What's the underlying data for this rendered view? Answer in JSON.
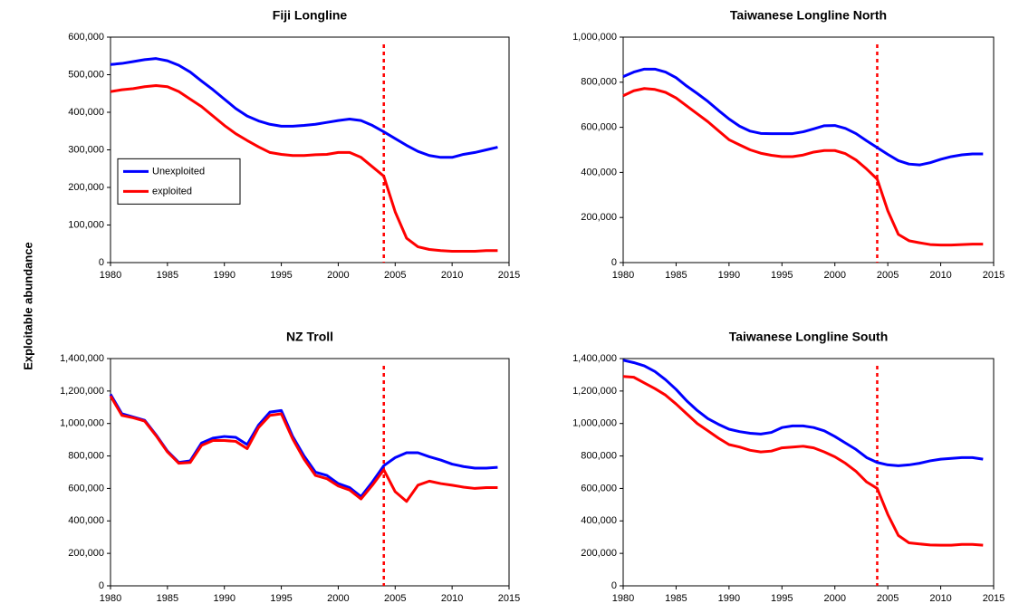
{
  "ylabel": "Exploitable abundance",
  "chart_data": [
    {
      "type": "line",
      "title": "Fiji Longline",
      "x": [
        1980,
        1981,
        1982,
        1983,
        1984,
        1985,
        1986,
        1987,
        1988,
        1989,
        1990,
        1991,
        1992,
        1993,
        1994,
        1995,
        1996,
        1997,
        1998,
        1999,
        2000,
        2001,
        2002,
        2003,
        2004,
        2005,
        2006,
        2007,
        2008,
        2009,
        2010,
        2011,
        2012,
        2013,
        2014
      ],
      "series": [
        {
          "name": "Unexploited",
          "color": "#0000ff",
          "values": [
            527000,
            530000,
            535000,
            540000,
            543000,
            537000,
            525000,
            507000,
            483000,
            460000,
            435000,
            410000,
            390000,
            377000,
            368000,
            363000,
            363000,
            365000,
            368000,
            373000,
            378000,
            382000,
            378000,
            365000,
            348000,
            330000,
            312000,
            296000,
            285000,
            280000,
            280000,
            288000,
            293000,
            300000,
            307000
          ]
        },
        {
          "name": "exploited",
          "color": "#ff0000",
          "values": [
            455000,
            460000,
            463000,
            468000,
            471000,
            468000,
            455000,
            435000,
            415000,
            390000,
            365000,
            343000,
            325000,
            308000,
            293000,
            288000,
            285000,
            285000,
            287000,
            288000,
            293000,
            293000,
            280000,
            255000,
            230000,
            135000,
            65000,
            42000,
            35000,
            32000,
            30000,
            30000,
            30000,
            32000,
            32000
          ]
        }
      ],
      "xlim": [
        1980,
        2015
      ],
      "xticks": [
        1980,
        1985,
        1990,
        1995,
        2000,
        2005,
        2010,
        2015
      ],
      "ylim": [
        0,
        600000
      ],
      "yticks": [
        0,
        {
          "value": 100000,
          "label": "100,000"
        },
        {
          "value": 200000,
          "label": "200,000"
        },
        {
          "value": 300000,
          "label": "300,000"
        },
        {
          "value": 400000,
          "label": "400,000"
        },
        {
          "value": 500000,
          "label": "500,000"
        },
        {
          "value": 600000,
          "label": "600,000"
        }
      ],
      "vline": {
        "value": 2004,
        "color": "#ff0000"
      },
      "legend": "center left"
    },
    {
      "type": "line",
      "title": "Taiwanese Longline North",
      "x": [
        1980,
        1981,
        1982,
        1983,
        1984,
        1985,
        1986,
        1987,
        1988,
        1989,
        1990,
        1991,
        1992,
        1993,
        1994,
        1995,
        1996,
        1997,
        1998,
        1999,
        2000,
        2001,
        2002,
        2003,
        2004,
        2005,
        2006,
        2007,
        2008,
        2009,
        2010,
        2011,
        2012,
        2013,
        2014
      ],
      "series": [
        {
          "name": "Unexploited",
          "color": "#0000ff",
          "values": [
            825000,
            845000,
            858000,
            858000,
            845000,
            820000,
            783000,
            750000,
            715000,
            675000,
            637000,
            605000,
            583000,
            573000,
            572000,
            572000,
            572000,
            580000,
            593000,
            607000,
            608000,
            595000,
            572000,
            540000,
            510000,
            480000,
            452000,
            437000,
            433000,
            443000,
            458000,
            470000,
            478000,
            482000,
            482000
          ]
        },
        {
          "name": "exploited",
          "color": "#ff0000",
          "values": [
            740000,
            762000,
            772000,
            768000,
            755000,
            730000,
            695000,
            660000,
            625000,
            585000,
            545000,
            522000,
            500000,
            485000,
            476000,
            470000,
            470000,
            477000,
            490000,
            497000,
            497000,
            483000,
            455000,
            415000,
            370000,
            230000,
            125000,
            97000,
            88000,
            80000,
            78000,
            78000,
            80000,
            82000,
            82000
          ]
        }
      ],
      "xlim": [
        1980,
        2015
      ],
      "xticks": [
        1980,
        1985,
        1990,
        1995,
        2000,
        2005,
        2010,
        2015
      ],
      "ylim": [
        0,
        1000000
      ],
      "yticks": [
        0,
        {
          "value": 200000,
          "label": "200,000"
        },
        {
          "value": 400000,
          "label": "400,000"
        },
        {
          "value": 600000,
          "label": "600,000"
        },
        {
          "value": 800000,
          "label": "800,000"
        },
        {
          "value": 1000000,
          "label": "1,000,000"
        }
      ],
      "vline": {
        "value": 2004,
        "color": "#ff0000"
      }
    },
    {
      "type": "line",
      "title": "NZ Troll",
      "x": [
        1980,
        1981,
        1982,
        1983,
        1984,
        1985,
        1986,
        1987,
        1988,
        1989,
        1990,
        1991,
        1992,
        1993,
        1994,
        1995,
        1996,
        1997,
        1998,
        1999,
        2000,
        2001,
        2002,
        2003,
        2004,
        2005,
        2006,
        2007,
        2008,
        2009,
        2010,
        2011,
        2012,
        2013,
        2014
      ],
      "series": [
        {
          "name": "Unexploited",
          "color": "#0000ff",
          "values": [
            1180000,
            1060000,
            1040000,
            1020000,
            930000,
            830000,
            760000,
            770000,
            880000,
            910000,
            920000,
            915000,
            870000,
            990000,
            1070000,
            1080000,
            920000,
            800000,
            700000,
            680000,
            630000,
            605000,
            550000,
            640000,
            740000,
            790000,
            820000,
            820000,
            795000,
            775000,
            750000,
            735000,
            725000,
            725000,
            730000
          ]
        },
        {
          "name": "exploited",
          "color": "#ff0000",
          "values": [
            1170000,
            1050000,
            1035000,
            1015000,
            925000,
            825000,
            755000,
            760000,
            865000,
            895000,
            895000,
            890000,
            845000,
            975000,
            1050000,
            1060000,
            905000,
            780000,
            680000,
            660000,
            615000,
            590000,
            535000,
            620000,
            715000,
            580000,
            520000,
            620000,
            645000,
            630000,
            620000,
            608000,
            600000,
            605000,
            605000
          ]
        }
      ],
      "xlim": [
        1980,
        2015
      ],
      "xticks": [
        1980,
        1985,
        1990,
        1995,
        2000,
        2005,
        2010,
        2015
      ],
      "ylim": [
        0,
        1400000
      ],
      "yticks": [
        0,
        {
          "value": 200000,
          "label": "200,000"
        },
        {
          "value": 400000,
          "label": "400,000"
        },
        {
          "value": 600000,
          "label": "600,000"
        },
        {
          "value": 800000,
          "label": "800,000"
        },
        {
          "value": 1000000,
          "label": "1,000,000"
        },
        {
          "value": 1200000,
          "label": "1,200,000"
        },
        {
          "value": 1400000,
          "label": "1,400,000"
        }
      ],
      "vline": {
        "value": 2004,
        "color": "#ff0000"
      }
    },
    {
      "type": "line",
      "title": "Taiwanese Longline South",
      "x": [
        1980,
        1981,
        1982,
        1983,
        1984,
        1985,
        1986,
        1987,
        1988,
        1989,
        1990,
        1991,
        1992,
        1993,
        1994,
        1995,
        1996,
        1997,
        1998,
        1999,
        2000,
        2001,
        2002,
        2003,
        2004,
        2005,
        2006,
        2007,
        2008,
        2009,
        2010,
        2011,
        2012,
        2013,
        2014
      ],
      "series": [
        {
          "name": "Unexploited",
          "color": "#0000ff",
          "values": [
            1390000,
            1375000,
            1355000,
            1320000,
            1270000,
            1210000,
            1140000,
            1080000,
            1030000,
            995000,
            965000,
            950000,
            940000,
            935000,
            945000,
            975000,
            985000,
            985000,
            975000,
            955000,
            920000,
            880000,
            840000,
            790000,
            760000,
            745000,
            740000,
            745000,
            755000,
            770000,
            780000,
            785000,
            790000,
            790000,
            780000
          ]
        },
        {
          "name": "exploited",
          "color": "#ff0000",
          "values": [
            1290000,
            1285000,
            1250000,
            1215000,
            1175000,
            1120000,
            1060000,
            1000000,
            955000,
            910000,
            870000,
            855000,
            835000,
            825000,
            830000,
            850000,
            855000,
            860000,
            850000,
            825000,
            795000,
            755000,
            705000,
            640000,
            600000,
            440000,
            310000,
            265000,
            258000,
            252000,
            250000,
            250000,
            255000,
            255000,
            250000
          ]
        }
      ],
      "xlim": [
        1980,
        2015
      ],
      "xticks": [
        1980,
        1985,
        1990,
        1995,
        2000,
        2005,
        2010,
        2015
      ],
      "ylim": [
        0,
        1400000
      ],
      "yticks": [
        0,
        {
          "value": 200000,
          "label": "200,000"
        },
        {
          "value": 400000,
          "label": "400,000"
        },
        {
          "value": 600000,
          "label": "600,000"
        },
        {
          "value": 800000,
          "label": "800,000"
        },
        {
          "value": 1000000,
          "label": "1,000,000"
        },
        {
          "value": 1200000,
          "label": "1,200,000"
        },
        {
          "value": 1400000,
          "label": "1,400,000"
        }
      ],
      "vline": {
        "value": 2004,
        "color": "#ff0000"
      }
    }
  ]
}
